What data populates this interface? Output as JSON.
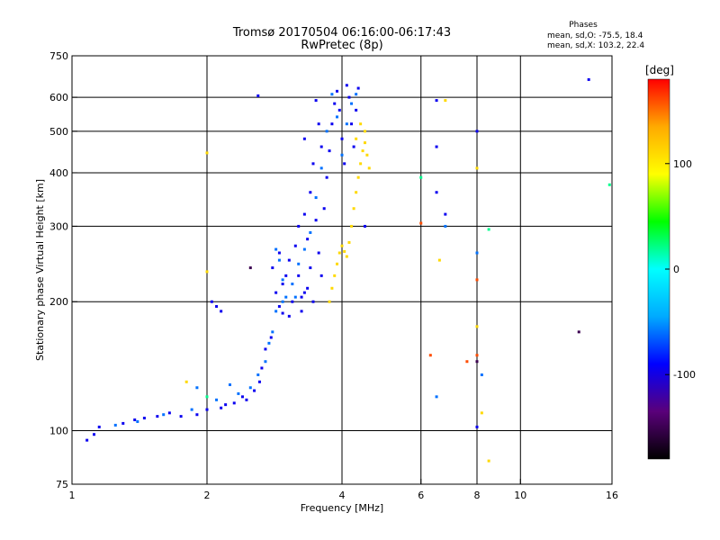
{
  "chart_data": {
    "type": "scatter",
    "title": "Tromsø 20170504 06:16:00-06:17:43",
    "subtitle": "RwPretec (8p)",
    "phase_header": "Phases",
    "phase_stats_o": "mean, sd,O: -75.5, 18.4",
    "phase_stats_x": "mean, sd,X: 103.2, 22.4",
    "xlabel": "Frequency [MHz]",
    "ylabel": "Stationary phase Virtual Height [km]",
    "x_scale": "log",
    "y_scale": "log",
    "xlim": [
      1,
      16
    ],
    "ylim": [
      75,
      750
    ],
    "x_ticks": [
      1,
      2,
      4,
      6,
      8,
      10,
      16
    ],
    "x_tick_labels": [
      "1",
      "2",
      "4",
      "6",
      "8",
      "10",
      "16"
    ],
    "y_ticks": [
      75,
      100,
      200,
      300,
      400,
      500,
      600,
      750
    ],
    "y_tick_labels": [
      "75",
      "100",
      "200",
      "300",
      "400",
      "500",
      "600",
      "750"
    ],
    "grid": true,
    "colorbar": {
      "label": "[deg]",
      "range": [
        -180,
        180
      ],
      "ticks": [
        -100,
        0,
        100
      ],
      "tick_labels": [
        "-100",
        "0",
        "100"
      ],
      "colors": [
        "#000000",
        "#5a007a",
        "#0000ff",
        "#00aaff",
        "#00ffff",
        "#00ff00",
        "#ffff00",
        "#ffaa00",
        "#ff0000"
      ]
    },
    "series": [
      {
        "phase": -95,
        "points": [
          [
            1.08,
            95
          ],
          [
            1.12,
            98
          ],
          [
            1.15,
            102
          ],
          [
            1.3,
            104
          ],
          [
            1.38,
            106
          ],
          [
            1.45,
            107
          ],
          [
            1.55,
            108
          ],
          [
            1.65,
            110
          ],
          [
            1.75,
            108
          ],
          [
            1.9,
            109
          ],
          [
            2.0,
            112
          ],
          [
            2.15,
            113
          ],
          [
            2.3,
            116
          ],
          [
            2.45,
            118
          ],
          [
            2.55,
            124
          ],
          [
            2.65,
            140
          ],
          [
            2.7,
            155
          ],
          [
            2.78,
            165
          ],
          [
            2.62,
            130
          ],
          [
            2.4,
            120
          ],
          [
            2.2,
            115
          ],
          [
            2.05,
            200
          ],
          [
            2.1,
            195
          ],
          [
            2.15,
            190
          ],
          [
            2.6,
            605
          ],
          [
            2.8,
            240
          ],
          [
            2.85,
            210
          ],
          [
            2.9,
            195
          ],
          [
            2.95,
            188
          ],
          [
            3.0,
            230
          ],
          [
            3.05,
            250
          ],
          [
            3.1,
            200
          ],
          [
            3.15,
            270
          ],
          [
            3.2,
            230
          ],
          [
            3.25,
            190
          ],
          [
            3.3,
            210
          ],
          [
            3.35,
            280
          ],
          [
            3.4,
            240
          ],
          [
            3.45,
            200
          ],
          [
            3.5,
            310
          ],
          [
            3.55,
            260
          ],
          [
            3.6,
            230
          ],
          [
            3.65,
            330
          ],
          [
            3.7,
            390
          ],
          [
            3.75,
            450
          ],
          [
            3.8,
            520
          ],
          [
            3.85,
            580
          ],
          [
            3.9,
            620
          ],
          [
            3.95,
            560
          ],
          [
            4.0,
            480
          ],
          [
            4.05,
            420
          ],
          [
            4.1,
            640
          ],
          [
            4.15,
            600
          ],
          [
            4.2,
            520
          ],
          [
            4.25,
            460
          ],
          [
            4.3,
            560
          ],
          [
            4.35,
            630
          ],
          [
            3.6,
            460
          ],
          [
            3.55,
            520
          ],
          [
            3.5,
            590
          ],
          [
            3.45,
            420
          ],
          [
            3.4,
            360
          ],
          [
            3.3,
            320
          ],
          [
            3.2,
            300
          ],
          [
            2.9,
            260
          ],
          [
            2.95,
            220
          ],
          [
            3.05,
            185
          ],
          [
            3.25,
            205
          ],
          [
            3.35,
            215
          ],
          [
            6.5,
            590
          ],
          [
            6.5,
            460
          ],
          [
            6.5,
            360
          ],
          [
            6.8,
            320
          ],
          [
            8.0,
            500
          ],
          [
            8.0,
            102
          ],
          [
            14.2,
            660
          ],
          [
            3.3,
            480
          ],
          [
            4.5,
            300
          ]
        ]
      },
      {
        "phase": -60,
        "points": [
          [
            1.25,
            103
          ],
          [
            1.4,
            105
          ],
          [
            1.6,
            109
          ],
          [
            1.85,
            112
          ],
          [
            2.1,
            118
          ],
          [
            2.35,
            122
          ],
          [
            2.5,
            126
          ],
          [
            2.6,
            135
          ],
          [
            2.7,
            145
          ],
          [
            2.75,
            160
          ],
          [
            2.8,
            170
          ],
          [
            2.85,
            265
          ],
          [
            2.9,
            250
          ],
          [
            2.95,
            225
          ],
          [
            3.0,
            205
          ],
          [
            3.1,
            220
          ],
          [
            3.2,
            245
          ],
          [
            3.3,
            265
          ],
          [
            3.4,
            290
          ],
          [
            3.5,
            350
          ],
          [
            3.6,
            410
          ],
          [
            3.7,
            500
          ],
          [
            3.8,
            610
          ],
          [
            3.9,
            540
          ],
          [
            4.0,
            440
          ],
          [
            4.1,
            520
          ],
          [
            4.2,
            580
          ],
          [
            4.3,
            610
          ],
          [
            2.85,
            190
          ],
          [
            2.95,
            200
          ],
          [
            3.15,
            205
          ],
          [
            6.5,
            120
          ],
          [
            6.8,
            300
          ],
          [
            8.0,
            260
          ],
          [
            8.2,
            135
          ],
          [
            1.9,
            126
          ],
          [
            2.25,
            128
          ]
        ]
      },
      {
        "phase": 110,
        "points": [
          [
            3.75,
            200
          ],
          [
            3.8,
            215
          ],
          [
            3.85,
            230
          ],
          [
            3.9,
            245
          ],
          [
            3.95,
            260
          ],
          [
            4.0,
            270
          ],
          [
            4.05,
            262
          ],
          [
            4.1,
            255
          ],
          [
            4.15,
            275
          ],
          [
            4.2,
            300
          ],
          [
            4.25,
            330
          ],
          [
            4.3,
            360
          ],
          [
            4.35,
            390
          ],
          [
            4.4,
            420
          ],
          [
            4.45,
            450
          ],
          [
            4.5,
            470
          ],
          [
            4.55,
            440
          ],
          [
            4.6,
            410
          ],
          [
            4.4,
            520
          ],
          [
            4.5,
            500
          ],
          [
            4.3,
            480
          ],
          [
            6.6,
            250
          ],
          [
            8.0,
            410
          ],
          [
            8.0,
            175
          ],
          [
            8.5,
            85
          ],
          [
            8.2,
            110
          ],
          [
            2.0,
            445
          ],
          [
            6.8,
            590
          ],
          [
            1.8,
            130
          ],
          [
            2.0,
            235
          ]
        ]
      },
      {
        "phase": 160,
        "points": [
          [
            6.3,
            150
          ],
          [
            7.6,
            145
          ],
          [
            8.0,
            225
          ],
          [
            8.0,
            150
          ],
          [
            6.0,
            305
          ]
        ]
      },
      {
        "phase": -150,
        "points": [
          [
            13.5,
            170
          ],
          [
            8.0,
            145
          ],
          [
            2.5,
            240
          ]
        ]
      },
      {
        "phase": 20,
        "points": [
          [
            15.8,
            375
          ],
          [
            6.0,
            390
          ],
          [
            8.5,
            295
          ],
          [
            2.0,
            120
          ]
        ]
      }
    ]
  }
}
